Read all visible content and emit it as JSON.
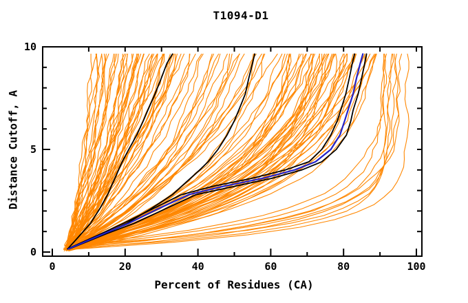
{
  "chart_data": {
    "type": "line",
    "title": "T1094-D1",
    "x_axis": {
      "label": "Percent of Residues (CA)",
      "min": 0,
      "max": 100,
      "major_ticks": [
        0,
        20,
        40,
        60,
        80,
        100
      ],
      "minor_ticks": [
        10,
        30,
        50,
        70,
        90
      ]
    },
    "y_axis": {
      "label": "Distance Cutoff, A",
      "min": 0,
      "max": 10,
      "major_ticks": [
        0,
        5,
        10
      ],
      "minor_ticks": [
        1,
        2,
        3,
        4,
        6,
        7,
        8,
        9
      ]
    },
    "grid": false,
    "legend": "none",
    "cutoffs": [
      0.15,
      0.5,
      0.9,
      1.4,
      2.1,
      2.8,
      3.2,
      3.6,
      4.0,
      4.4,
      5.0,
      5.7,
      6.4,
      6.9,
      7.7,
      8.5,
      9.2,
      9.65
    ],
    "series": [
      {
        "name": "reference-black-1",
        "color": "#000000",
        "width": 1.8,
        "percents": [
          4.2,
          6.0,
          8.0,
          10.5,
          13.0,
          15.2,
          16.2,
          17.2,
          18.2,
          19.2,
          21.0,
          23.2,
          25.0,
          26.2,
          28.2,
          30.0,
          31.5,
          33.0
        ]
      },
      {
        "name": "reference-black-2",
        "color": "#000000",
        "width": 1.8,
        "percents": [
          4.2,
          9.0,
          14.5,
          20.5,
          27.0,
          33.0,
          35.5,
          38.0,
          40.5,
          42.8,
          45.5,
          48.0,
          50.0,
          51.2,
          53.0,
          54.0,
          55.0,
          55.6
        ]
      },
      {
        "name": "reference-black-3",
        "color": "#000000",
        "width": 1.8,
        "percents": [
          4.2,
          8.5,
          13.5,
          19.5,
          27.5,
          35.5,
          44.0,
          55.0,
          64.0,
          70.5,
          74.0,
          76.5,
          78.3,
          79.2,
          80.6,
          81.6,
          82.4,
          83.0
        ]
      },
      {
        "name": "reference-black-4",
        "color": "#000000",
        "width": 1.8,
        "percents": [
          4.6,
          9.5,
          15.0,
          22.5,
          31.0,
          39.5,
          50.0,
          60.5,
          68.5,
          74.0,
          78.0,
          80.8,
          82.0,
          82.6,
          84.0,
          85.0,
          85.8,
          86.3
        ]
      },
      {
        "name": "best-model-blue",
        "color": "#2222c8",
        "width": 2.2,
        "percents": [
          4.4,
          9.0,
          14.2,
          21.0,
          29.0,
          37.5,
          47.0,
          58.0,
          66.5,
          72.3,
          76.5,
          79.0,
          80.3,
          81.2,
          82.6,
          83.6,
          84.6,
          85.3
        ]
      }
    ],
    "ensemble": {
      "name": "prediction-curves",
      "color": "#ff8700",
      "width": 1.1,
      "seed": 42,
      "start_percent": 4.2,
      "start_cutoff_max": 0.3,
      "end_cutoff": 9.65,
      "groups": [
        {
          "label": "poor-models",
          "count": 46,
          "top_percent": [
            11,
            36
          ],
          "tau": [
            6.0,
            16.0
          ]
        },
        {
          "label": "mid-models",
          "count": 22,
          "top_percent": [
            37,
            62
          ],
          "tau": [
            3.5,
            8.0
          ]
        },
        {
          "label": "good-models",
          "count": 48,
          "top_percent": [
            63,
            89
          ],
          "tau": [
            2.2,
            5.0
          ]
        },
        {
          "label": "superb-models",
          "count": 9,
          "top_percent": [
            90,
            97.5
          ],
          "tau": [
            0.8,
            1.6
          ]
        }
      ]
    },
    "colors": {
      "orange": "#ff8700",
      "blue": "#2222c8",
      "black": "#000000",
      "background": "#ffffff"
    }
  }
}
